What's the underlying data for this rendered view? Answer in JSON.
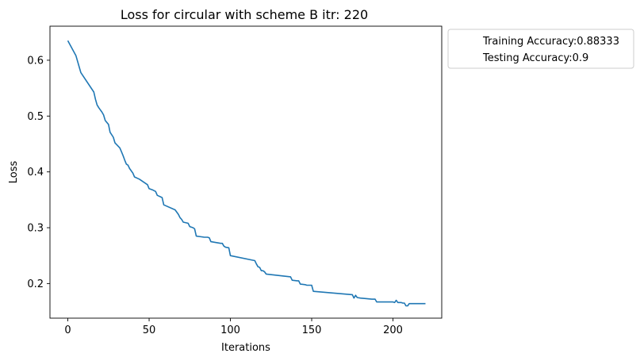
{
  "chart_data": {
    "type": "line",
    "title": "Loss for circular with scheme B itr: 220",
    "xlabel": "Iterations",
    "ylabel": "Loss",
    "xlim": [
      -11,
      230
    ],
    "ylim": [
      0.138,
      0.661
    ],
    "xticks": [
      0,
      50,
      100,
      150,
      200
    ],
    "yticks": [
      0.2,
      0.3,
      0.4,
      0.5,
      0.6
    ],
    "xtick_labels": [
      "0",
      "50",
      "100",
      "150",
      "200"
    ],
    "ytick_labels": [
      "0.2",
      "0.3",
      "0.4",
      "0.5",
      "0.6"
    ],
    "grid": false,
    "legend_placement": "outside-upper-right",
    "legend": [
      "Training Accuracy:0.88333",
      "Testing Accuracy:0.9"
    ],
    "series": [
      {
        "color": "#1f77b4",
        "x": [
          0,
          5,
          8,
          16,
          17,
          18,
          19,
          21,
          22,
          23,
          25,
          26,
          28,
          29,
          32,
          33,
          34,
          35,
          36,
          37,
          38,
          40,
          41,
          44,
          49,
          50,
          52,
          54,
          55,
          58,
          59,
          66,
          68,
          69,
          70,
          71,
          74,
          75,
          77,
          78,
          79,
          84,
          86,
          87,
          88,
          94,
          95,
          96,
          97,
          99,
          100,
          115,
          116,
          117,
          118,
          119,
          120,
          121,
          122,
          137,
          138,
          141,
          142,
          143,
          146,
          147,
          150,
          151,
          175,
          176,
          177,
          178,
          180,
          187,
          189,
          190,
          200,
          201,
          202,
          203,
          205,
          206,
          207,
          208,
          209,
          210,
          220
        ],
        "y": [
          0.635,
          0.608,
          0.578,
          0.543,
          0.53,
          0.52,
          0.515,
          0.507,
          0.502,
          0.492,
          0.485,
          0.471,
          0.462,
          0.452,
          0.443,
          0.436,
          0.429,
          0.421,
          0.414,
          0.412,
          0.406,
          0.398,
          0.391,
          0.387,
          0.377,
          0.37,
          0.368,
          0.365,
          0.358,
          0.354,
          0.341,
          0.332,
          0.324,
          0.318,
          0.315,
          0.31,
          0.308,
          0.302,
          0.3,
          0.298,
          0.285,
          0.283,
          0.283,
          0.282,
          0.275,
          0.272,
          0.272,
          0.267,
          0.265,
          0.264,
          0.25,
          0.241,
          0.235,
          0.23,
          0.229,
          0.223,
          0.223,
          0.221,
          0.217,
          0.212,
          0.206,
          0.205,
          0.205,
          0.199,
          0.198,
          0.197,
          0.197,
          0.186,
          0.18,
          0.174,
          0.179,
          0.175,
          0.174,
          0.172,
          0.172,
          0.167,
          0.167,
          0.166,
          0.17,
          0.166,
          0.166,
          0.165,
          0.165,
          0.16,
          0.16,
          0.164,
          0.164
        ]
      }
    ]
  }
}
